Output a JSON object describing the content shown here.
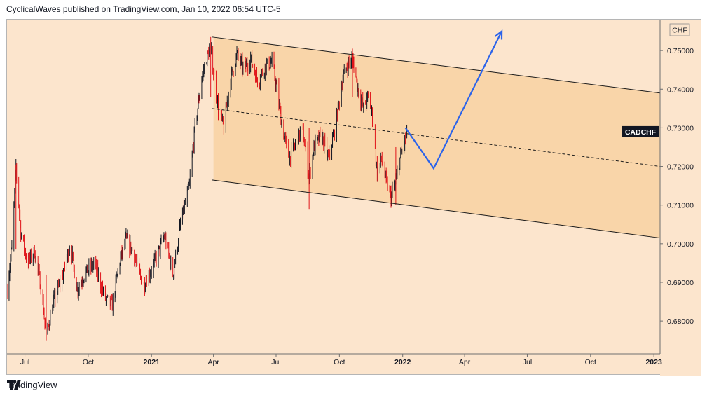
{
  "header": {
    "text": "CyclicalWaves published on TradingView.com, Jan 10, 2022 06:54 UTC-5"
  },
  "footer": {
    "brand": "TradingView"
  },
  "chart_data": {
    "type": "candlestick",
    "symbol": "CADCHF",
    "currency": "CHF",
    "colors": {
      "up": "#131722",
      "down": "#e0151a",
      "projection": "#2b63ea",
      "background": "#fce5cd",
      "channel_fill": "#f9d5a9"
    },
    "y_range": [
      0.6715,
      0.758
    ],
    "y_ticks": [
      "0.75000",
      "0.74000",
      "0.73000",
      "0.72000",
      "0.71000",
      "0.70000",
      "0.69000",
      "0.68000"
    ],
    "x_range": [
      "2020-06-05",
      "2023-01-10"
    ],
    "x_ticks": [
      {
        "date": "2020-07-01",
        "label": "Jul",
        "bold": false
      },
      {
        "date": "2020-10-01",
        "label": "Oct",
        "bold": false
      },
      {
        "date": "2021-01-01",
        "label": "2021",
        "bold": true
      },
      {
        "date": "2021-04-01",
        "label": "Apr",
        "bold": false
      },
      {
        "date": "2021-07-01",
        "label": "Jul",
        "bold": false
      },
      {
        "date": "2021-10-01",
        "label": "Oct",
        "bold": false
      },
      {
        "date": "2022-01-01",
        "label": "2022",
        "bold": true
      },
      {
        "date": "2022-04-01",
        "label": "Apr",
        "bold": false
      },
      {
        "date": "2022-07-01",
        "label": "Jul",
        "bold": false
      },
      {
        "date": "2022-10-01",
        "label": "Oct",
        "bold": false
      },
      {
        "date": "2023-01-01",
        "label": "2023",
        "bold": true
      }
    ],
    "price_path": [
      [
        "2020-06-05",
        0.688
      ],
      [
        "2020-06-12",
        0.699
      ],
      [
        "2020-06-18",
        0.72
      ],
      [
        "2020-06-25",
        0.703
      ],
      [
        "2020-07-05",
        0.695
      ],
      [
        "2020-07-15",
        0.698
      ],
      [
        "2020-07-25",
        0.688
      ],
      [
        "2020-08-01",
        0.676
      ],
      [
        "2020-08-10",
        0.684
      ],
      [
        "2020-08-25",
        0.692
      ],
      [
        "2020-09-05",
        0.7
      ],
      [
        "2020-09-15",
        0.688
      ],
      [
        "2020-09-25",
        0.692
      ],
      [
        "2020-10-10",
        0.695
      ],
      [
        "2020-10-25",
        0.686
      ],
      [
        "2020-11-05",
        0.684
      ],
      [
        "2020-11-15",
        0.695
      ],
      [
        "2020-11-25",
        0.701
      ],
      [
        "2020-12-05",
        0.698
      ],
      [
        "2020-12-20",
        0.689
      ],
      [
        "2021-01-05",
        0.695
      ],
      [
        "2021-01-20",
        0.702
      ],
      [
        "2021-02-01",
        0.692
      ],
      [
        "2021-02-12",
        0.705
      ],
      [
        "2021-02-25",
        0.715
      ],
      [
        "2021-03-05",
        0.73
      ],
      [
        "2021-03-15",
        0.743
      ],
      [
        "2021-03-22",
        0.748
      ],
      [
        "2021-03-28",
        0.751
      ],
      [
        "2021-04-02",
        0.743
      ],
      [
        "2021-04-08",
        0.735
      ],
      [
        "2021-04-16",
        0.73
      ],
      [
        "2021-04-25",
        0.742
      ],
      [
        "2021-05-05",
        0.749
      ],
      [
        "2021-05-15",
        0.745
      ],
      [
        "2021-05-25",
        0.748
      ],
      [
        "2021-06-05",
        0.742
      ],
      [
        "2021-06-15",
        0.746
      ],
      [
        "2021-06-25",
        0.747
      ],
      [
        "2021-07-02",
        0.74
      ],
      [
        "2021-07-10",
        0.73
      ],
      [
        "2021-07-20",
        0.722
      ],
      [
        "2021-07-30",
        0.726
      ],
      [
        "2021-08-08",
        0.73
      ],
      [
        "2021-08-18",
        0.717
      ],
      [
        "2021-08-25",
        0.725
      ],
      [
        "2021-09-05",
        0.728
      ],
      [
        "2021-09-15",
        0.722
      ],
      [
        "2021-09-25",
        0.73
      ],
      [
        "2021-10-05",
        0.742
      ],
      [
        "2021-10-12",
        0.746
      ],
      [
        "2021-10-20",
        0.748
      ],
      [
        "2021-10-28",
        0.74
      ],
      [
        "2021-11-05",
        0.735
      ],
      [
        "2021-11-12",
        0.738
      ],
      [
        "2021-11-18",
        0.733
      ],
      [
        "2021-11-25",
        0.718
      ],
      [
        "2021-12-01",
        0.722
      ],
      [
        "2021-12-08",
        0.716
      ],
      [
        "2021-12-15",
        0.712
      ],
      [
        "2021-12-22",
        0.716
      ],
      [
        "2021-12-28",
        0.722
      ],
      [
        "2022-01-03",
        0.726
      ],
      [
        "2022-01-07",
        0.729
      ]
    ],
    "spikes": [
      [
        "2020-06-18",
        0.7205,
        0.6985
      ],
      [
        "2020-08-01",
        0.692,
        0.675
      ],
      [
        "2021-03-28",
        0.7535,
        0.738
      ],
      [
        "2021-08-18",
        0.73,
        0.709
      ],
      [
        "2021-10-20",
        0.7505,
        0.738
      ],
      [
        "2021-12-22",
        0.725,
        0.71
      ]
    ],
    "channel": {
      "upper": [
        [
          "2021-03-30",
          0.7535
        ],
        [
          "2023-01-10",
          0.739
        ]
      ],
      "lower": [
        [
          "2021-03-30",
          0.7165
        ],
        [
          "2023-01-10",
          0.7015
        ]
      ],
      "fill_start": "2021-04-01"
    },
    "midline": [
      [
        "2021-03-30",
        0.735
      ],
      [
        "2023-01-10",
        0.72
      ]
    ],
    "projection": [
      [
        "2022-01-05",
        0.73
      ],
      [
        "2022-02-15",
        0.7195
      ],
      [
        "2022-05-25",
        0.755
      ]
    ],
    "last_price_label": {
      "text": "CADCHF",
      "value": 0.729
    }
  }
}
